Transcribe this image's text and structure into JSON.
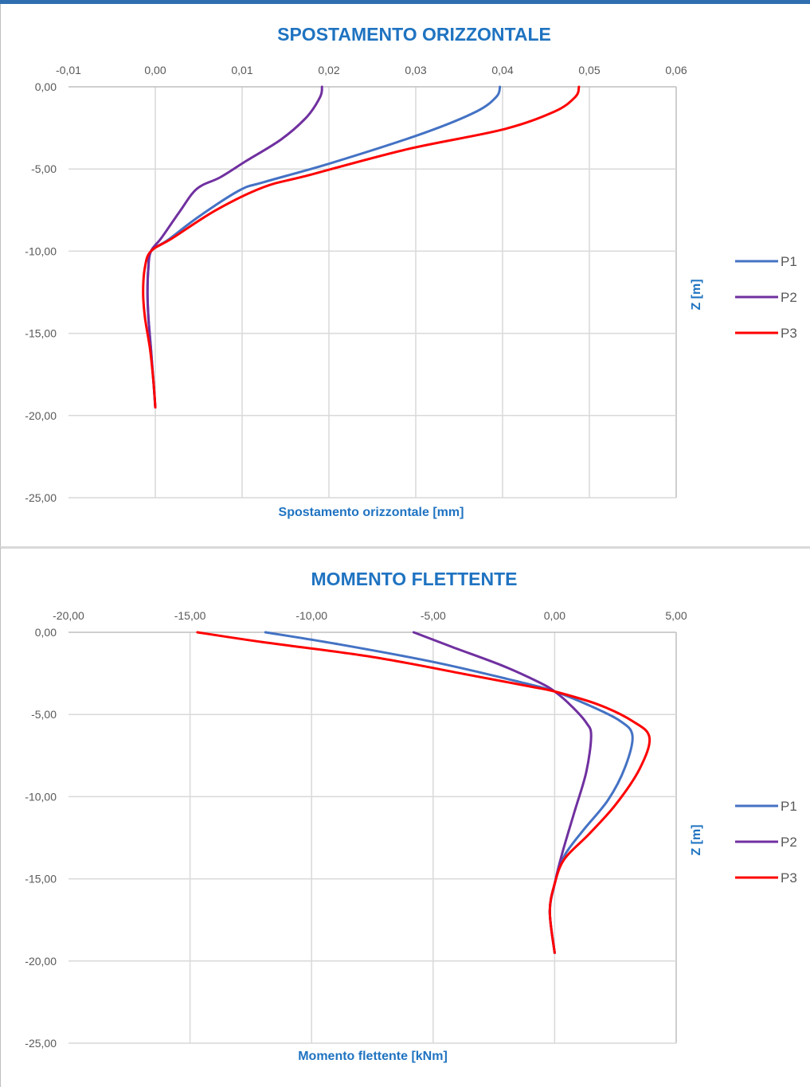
{
  "chart_data": [
    {
      "type": "line",
      "title": "SPOSTAMENTO ORIZZONTALE",
      "xlabel": "Spostamento orizzontale [mm]",
      "ylabel": "Z [m]",
      "x_ticks": [
        "-0,01",
        "0,00",
        "0,01",
        "0,02",
        "0,03",
        "0,04",
        "0,05",
        "0,06"
      ],
      "y_ticks": [
        "0,00",
        "-5,00",
        "-10,00",
        "-15,00",
        "-20,00",
        "-25,00"
      ],
      "xlim": [
        -0.01,
        0.06
      ],
      "ylim": [
        -25,
        0
      ],
      "grid": "vertical and horizontal",
      "legend": "right",
      "series": [
        {
          "name": "P1",
          "color": "#4472c4",
          "points": [
            [
              0.0397,
              0
            ],
            [
              0.0393,
              -0.6
            ],
            [
              0.037,
              -1.5
            ],
            [
              0.031,
              -2.8
            ],
            [
              0.0205,
              -4.6
            ],
            [
              0.0125,
              -5.8
            ],
            [
              0.0097,
              -6.3
            ],
            [
              0.005,
              -7.9
            ],
            [
              0.0015,
              -9.3
            ],
            [
              -0.0005,
              -10
            ],
            [
              -0.0008,
              -11
            ],
            [
              -0.0009,
              -12.5
            ],
            [
              -0.0008,
              -14
            ],
            [
              -0.0005,
              -16
            ],
            [
              -0.0002,
              -18
            ],
            [
              0.0,
              -19.5
            ]
          ]
        },
        {
          "name": "P2",
          "color": "#7030a0",
          "points": [
            [
              0.0192,
              0
            ],
            [
              0.019,
              -0.6
            ],
            [
              0.0175,
              -1.8
            ],
            [
              0.0145,
              -3.2
            ],
            [
              0.0105,
              -4.5
            ],
            [
              0.0075,
              -5.5
            ],
            [
              0.0048,
              -6.2
            ],
            [
              0.0028,
              -7.6
            ],
            [
              0.0007,
              -9.2
            ],
            [
              -0.0005,
              -10
            ],
            [
              -0.0008,
              -11
            ],
            [
              -0.0009,
              -12.5
            ],
            [
              -0.0008,
              -14
            ],
            [
              -0.0005,
              -16
            ],
            [
              -0.0002,
              -18
            ],
            [
              0.0,
              -19.5
            ]
          ]
        },
        {
          "name": "P3",
          "color": "#ff0000",
          "points": [
            [
              0.0488,
              0
            ],
            [
              0.0484,
              -0.6
            ],
            [
              0.046,
              -1.5
            ],
            [
              0.04,
              -2.6
            ],
            [
              0.029,
              -3.8
            ],
            [
              0.0175,
              -5.4
            ],
            [
              0.0125,
              -6.1
            ],
            [
              0.007,
              -7.5
            ],
            [
              0.002,
              -9.2
            ],
            [
              -0.0005,
              -10
            ],
            [
              -0.0012,
              -11
            ],
            [
              -0.0014,
              -12.5
            ],
            [
              -0.0012,
              -14
            ],
            [
              -0.0006,
              -16
            ],
            [
              -0.0002,
              -18
            ],
            [
              0.0,
              -19.5
            ]
          ]
        }
      ]
    },
    {
      "type": "line",
      "title": "MOMENTO FLETTENTE",
      "xlabel": "Momento flettente [kNm]",
      "ylabel": "Z [m]",
      "x_ticks": [
        "-20,00",
        "-15,00",
        "-10,00",
        "-5,00",
        "0,00",
        "5,00"
      ],
      "y_ticks": [
        "0,00",
        "-5,00",
        "-10,00",
        "-15,00",
        "-20,00",
        "-25,00"
      ],
      "xlim": [
        -20,
        5
      ],
      "ylim": [
        -25,
        0
      ],
      "grid": "vertical and horizontal",
      "legend": "right",
      "series": [
        {
          "name": "P1",
          "color": "#4472c4",
          "points": [
            [
              -11.9,
              0
            ],
            [
              -9.0,
              -0.7
            ],
            [
              -5.0,
              -1.8
            ],
            [
              -1.5,
              -3.0
            ],
            [
              0.0,
              -3.6
            ],
            [
              1.5,
              -4.5
            ],
            [
              2.7,
              -5.4
            ],
            [
              3.2,
              -6.3
            ],
            [
              2.9,
              -8.2
            ],
            [
              2.2,
              -10.2
            ],
            [
              1.2,
              -12.0
            ],
            [
              0.4,
              -13.6
            ],
            [
              0.0,
              -15.3
            ],
            [
              -0.2,
              -17.0
            ],
            [
              0.0,
              -19.5
            ]
          ]
        },
        {
          "name": "P2",
          "color": "#7030a0",
          "points": [
            [
              -5.8,
              0
            ],
            [
              -4.2,
              -0.9
            ],
            [
              -2.2,
              -2.0
            ],
            [
              -0.7,
              -3.0
            ],
            [
              0.0,
              -3.6
            ],
            [
              0.7,
              -4.5
            ],
            [
              1.3,
              -5.5
            ],
            [
              1.5,
              -6.3
            ],
            [
              1.3,
              -8.5
            ],
            [
              0.8,
              -11.0
            ],
            [
              0.3,
              -13.5
            ],
            [
              0.0,
              -15.3
            ],
            [
              -0.2,
              -17.0
            ],
            [
              0.0,
              -19.5
            ]
          ]
        },
        {
          "name": "P3",
          "color": "#ff0000",
          "points": [
            [
              -14.7,
              0
            ],
            [
              -12.0,
              -0.6
            ],
            [
              -7.5,
              -1.5
            ],
            [
              -3.5,
              -2.6
            ],
            [
              -1.0,
              -3.3
            ],
            [
              0.0,
              -3.6
            ],
            [
              1.8,
              -4.4
            ],
            [
              3.2,
              -5.4
            ],
            [
              3.9,
              -6.4
            ],
            [
              3.5,
              -8.3
            ],
            [
              2.5,
              -10.5
            ],
            [
              1.4,
              -12.3
            ],
            [
              0.4,
              -13.8
            ],
            [
              0.0,
              -15.3
            ],
            [
              -0.2,
              -17.0
            ],
            [
              0.0,
              -19.5
            ]
          ]
        }
      ]
    }
  ]
}
